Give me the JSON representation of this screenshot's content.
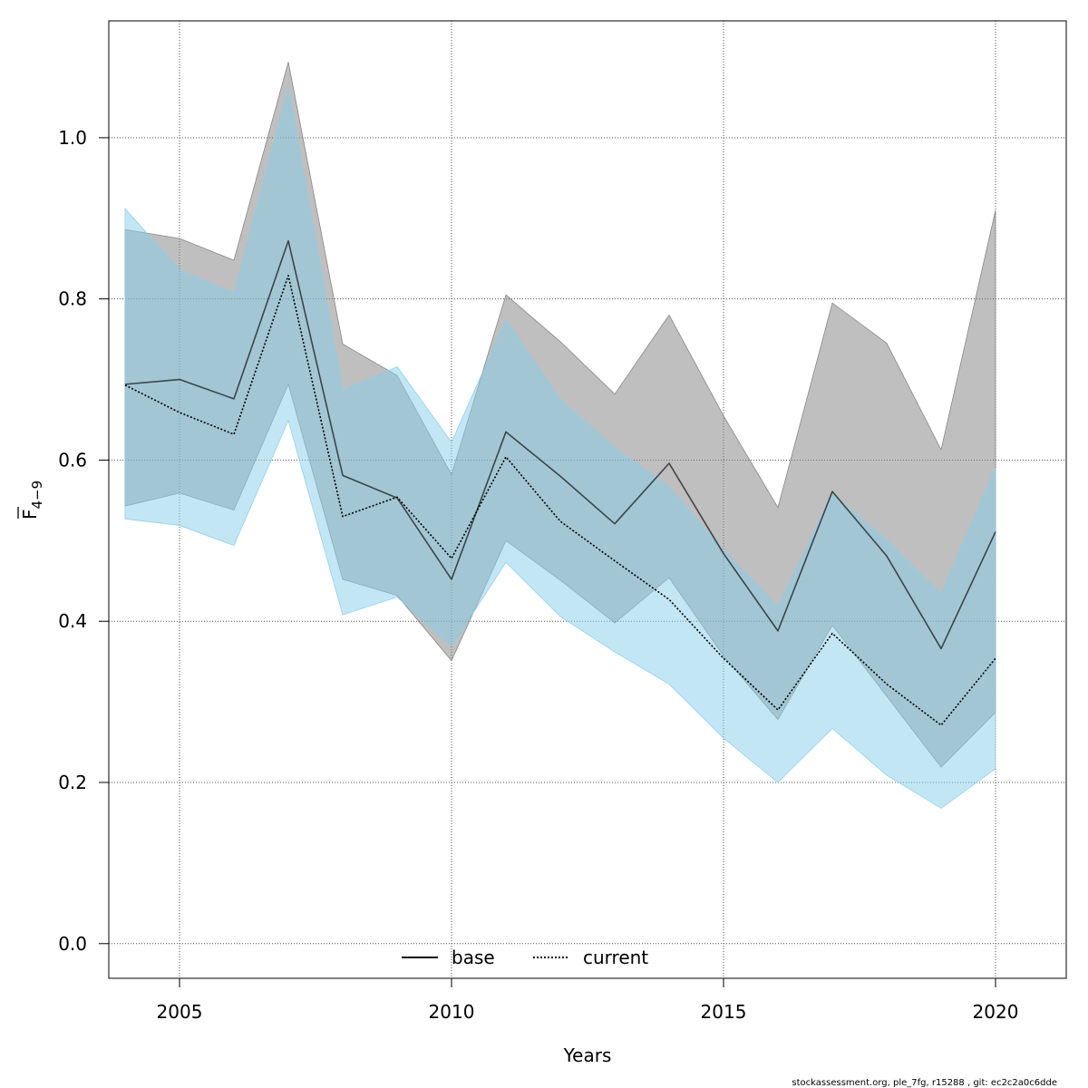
{
  "chart_data": {
    "type": "line",
    "title": "",
    "xlabel": "Years",
    "ylabel_main": "F",
    "ylabel_sub": "4−9",
    "xlim": [
      2003.7,
      2021.3
    ],
    "ylim": [
      -0.043,
      1.145
    ],
    "x_ticks": [
      2005,
      2010,
      2015,
      2020
    ],
    "y_ticks": [
      0.0,
      0.2,
      0.4,
      0.6,
      0.8,
      1.0
    ],
    "y_tick_labels": [
      "0.0",
      "0.2",
      "0.4",
      "0.6",
      "0.8",
      "1.0"
    ],
    "grid": true,
    "legend_position": "bottom-center",
    "x": [
      2004,
      2005,
      2006,
      2007,
      2008,
      2009,
      2010,
      2011,
      2012,
      2013,
      2014,
      2015,
      2016,
      2017,
      2018,
      2019,
      2020
    ],
    "series": [
      {
        "name": "base",
        "line_style": "solid",
        "line_color": "#000000",
        "band_color": "#808080",
        "values": [
          0.694,
          0.7,
          0.676,
          0.872,
          0.581,
          0.553,
          0.452,
          0.635,
          0.58,
          0.521,
          0.596,
          0.484,
          0.388,
          0.561,
          0.481,
          0.366,
          0.511
        ],
        "lower": [
          0.543,
          0.559,
          0.538,
          0.694,
          0.452,
          0.432,
          0.351,
          0.5,
          0.451,
          0.398,
          0.454,
          0.357,
          0.278,
          0.395,
          0.307,
          0.219,
          0.287
        ],
        "upper": [
          0.886,
          0.875,
          0.848,
          1.094,
          0.744,
          0.705,
          0.582,
          0.805,
          0.747,
          0.682,
          0.78,
          0.655,
          0.541,
          0.795,
          0.745,
          0.613,
          0.91
        ]
      },
      {
        "name": "current",
        "line_style": "dotted",
        "line_color": "#000000",
        "band_color": "#87CEEB",
        "values": [
          0.693,
          0.659,
          0.632,
          0.829,
          0.53,
          0.554,
          0.478,
          0.604,
          0.524,
          0.475,
          0.427,
          0.354,
          0.29,
          0.385,
          0.322,
          0.271,
          0.354
        ],
        "lower": [
          0.527,
          0.519,
          0.494,
          0.649,
          0.408,
          0.43,
          0.369,
          0.473,
          0.406,
          0.362,
          0.322,
          0.255,
          0.2,
          0.267,
          0.209,
          0.168,
          0.217
        ],
        "upper": [
          0.912,
          0.836,
          0.807,
          1.062,
          0.686,
          0.716,
          0.622,
          0.774,
          0.675,
          0.615,
          0.566,
          0.488,
          0.418,
          0.557,
          0.501,
          0.434,
          0.59
        ]
      }
    ],
    "footer": "stockassessment.org, ple_7fg, r15288 , git: ec2c2a0c6dde"
  }
}
